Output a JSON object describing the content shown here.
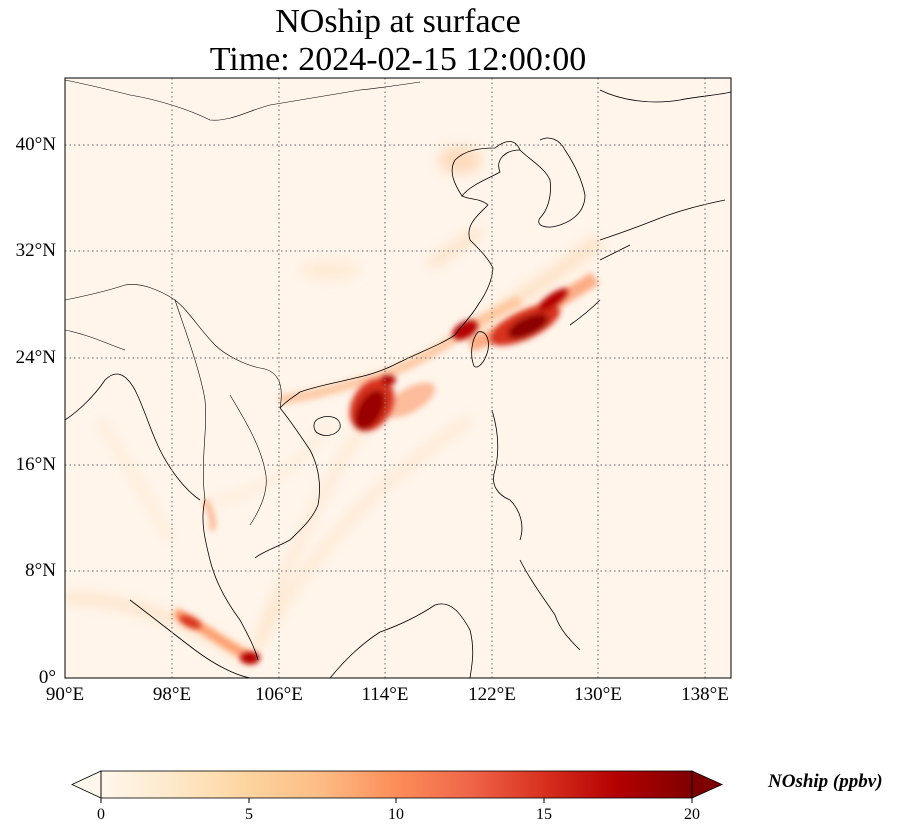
{
  "title_line1": "NOship at surface",
  "title_line2": "Time: 2024-02-15 12:00:00",
  "map": {
    "lon_range": [
      90,
      140
    ],
    "lat_range": [
      0,
      45
    ],
    "gridline_style": "dotted",
    "gridline_color": "#808080",
    "lon_ticks": [
      "90°E",
      "98°E",
      "106°E",
      "114°E",
      "122°E",
      "130°E",
      "138°E"
    ],
    "lat_ticks": [
      "0°",
      "8°N",
      "16°N",
      "24°N",
      "32°N",
      "40°N"
    ],
    "background_color": "#fff5eb",
    "coastline_color": "#000000"
  },
  "colorbar": {
    "label": "NOship (ppbv)",
    "colormap": "OrRd",
    "ticks": [
      "0",
      "5",
      "10",
      "15",
      "20"
    ],
    "range": [
      0,
      20
    ],
    "extend": "both",
    "colors": [
      "#fff7ec",
      "#fee8c8",
      "#fdd49e",
      "#fdbb84",
      "#fc8d59",
      "#ef6548",
      "#d7301f",
      "#b30000",
      "#7f0000"
    ]
  }
}
